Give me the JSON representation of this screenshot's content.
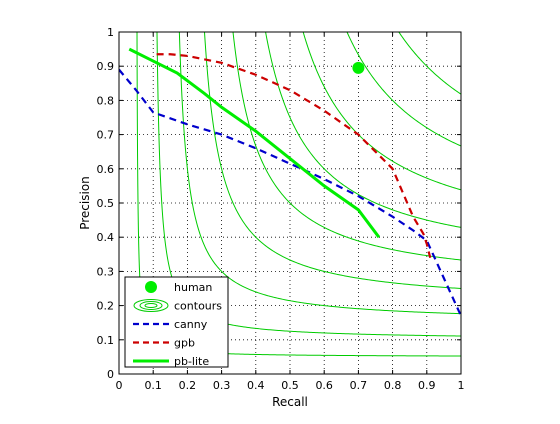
{
  "chart_data": {
    "type": "line",
    "title": "",
    "xlabel": "Recall",
    "ylabel": "Precision",
    "xlim": [
      0,
      1
    ],
    "ylim": [
      0,
      1
    ],
    "xticks": [
      "0",
      "0.1",
      "0.2",
      "0.3",
      "0.4",
      "0.5",
      "0.6",
      "0.7",
      "0.8",
      "0.9",
      "1"
    ],
    "yticks": [
      "0",
      "0.1",
      "0.2",
      "0.3",
      "0.4",
      "0.5",
      "0.6",
      "0.7",
      "0.8",
      "0.9",
      "1"
    ],
    "grid": true,
    "grid_style": "dotted",
    "legend_position": "bottom-left",
    "contour_f_levels": [
      0.1,
      0.2,
      0.3,
      0.4,
      0.5,
      0.6,
      0.7,
      0.8,
      0.9
    ],
    "series": [
      {
        "name": "human",
        "kind": "marker",
        "color": "#00ee00",
        "x": [
          0.7
        ],
        "y": [
          0.895
        ]
      },
      {
        "name": "contours",
        "kind": "iso-f contours",
        "color": "#00cc00"
      },
      {
        "name": "canny",
        "kind": "dashed",
        "color": "#0000cc",
        "x": [
          0.0,
          0.05,
          0.1,
          0.2,
          0.3,
          0.4,
          0.5,
          0.6,
          0.7,
          0.8,
          0.86,
          0.9,
          0.95,
          1.0
        ],
        "y": [
          0.89,
          0.83,
          0.765,
          0.73,
          0.7,
          0.66,
          0.615,
          0.57,
          0.52,
          0.46,
          0.42,
          0.39,
          0.28,
          0.17
        ]
      },
      {
        "name": "gpb",
        "kind": "dashed",
        "color": "#cc0000",
        "x": [
          0.11,
          0.15,
          0.2,
          0.3,
          0.4,
          0.5,
          0.6,
          0.7,
          0.75,
          0.8,
          0.83,
          0.86,
          0.89,
          0.9,
          0.91
        ],
        "y": [
          0.935,
          0.935,
          0.93,
          0.91,
          0.875,
          0.83,
          0.77,
          0.7,
          0.65,
          0.6,
          0.53,
          0.46,
          0.41,
          0.38,
          0.34
        ]
      },
      {
        "name": "pb-lite",
        "kind": "solid",
        "color": "#00ee00",
        "x": [
          0.03,
          0.1,
          0.17,
          0.25,
          0.3,
          0.4,
          0.5,
          0.6,
          0.7,
          0.76
        ],
        "y": [
          0.95,
          0.915,
          0.88,
          0.82,
          0.78,
          0.71,
          0.63,
          0.55,
          0.48,
          0.4
        ]
      }
    ]
  }
}
